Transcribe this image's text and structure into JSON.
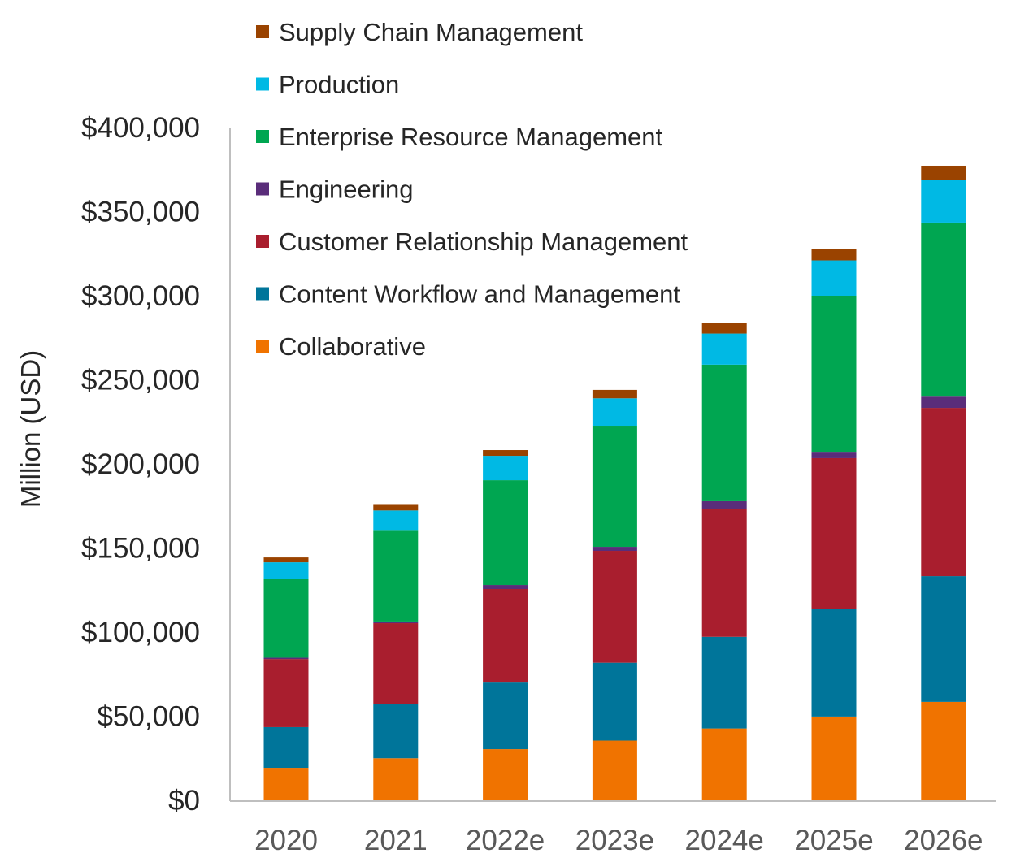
{
  "chart_data": {
    "type": "bar",
    "stacked": true,
    "title": "",
    "xlabel": "",
    "ylabel": "Million (USD)",
    "ylim": [
      0,
      400000
    ],
    "yticks": [
      0,
      50000,
      100000,
      150000,
      200000,
      250000,
      300000,
      350000,
      400000
    ],
    "ytick_labels": [
      "$0",
      "$50,000",
      "$100,000",
      "$150,000",
      "$200,000",
      "$250,000",
      "$300,000",
      "$350,000",
      "$400,000"
    ],
    "grid": false,
    "legend_position": "top-left",
    "categories": [
      "2020",
      "2021",
      "2022e",
      "2023e",
      "2024e",
      "2025e",
      "2026e"
    ],
    "series": [
      {
        "name": "Collaborative",
        "color": "#F07300",
        "values": [
          19300,
          25000,
          30400,
          35500,
          42700,
          49800,
          58500
        ]
      },
      {
        "name": "Content Workflow and Management",
        "color": "#00759A",
        "values": [
          24200,
          32000,
          39600,
          46300,
          54500,
          64200,
          74800
        ]
      },
      {
        "name": "Customer Relationship Management",
        "color": "#A91E2E",
        "values": [
          40500,
          48300,
          55600,
          66500,
          76200,
          89400,
          100000
        ]
      },
      {
        "name": "Engineering",
        "color": "#5A2D7A",
        "values": [
          800,
          1000,
          2400,
          2400,
          4400,
          3800,
          6700
        ]
      },
      {
        "name": "Enterprise Resource Management",
        "color": "#00A651",
        "values": [
          46600,
          54400,
          62300,
          72000,
          81200,
          92800,
          103500
        ]
      },
      {
        "name": "Production",
        "color": "#00B9E4",
        "values": [
          10100,
          11600,
          14500,
          16300,
          18500,
          21000,
          25100
        ]
      },
      {
        "name": "Supply Chain Management",
        "color": "#9A4300",
        "values": [
          2900,
          3800,
          3400,
          5000,
          6200,
          7000,
          8700
        ]
      }
    ]
  }
}
